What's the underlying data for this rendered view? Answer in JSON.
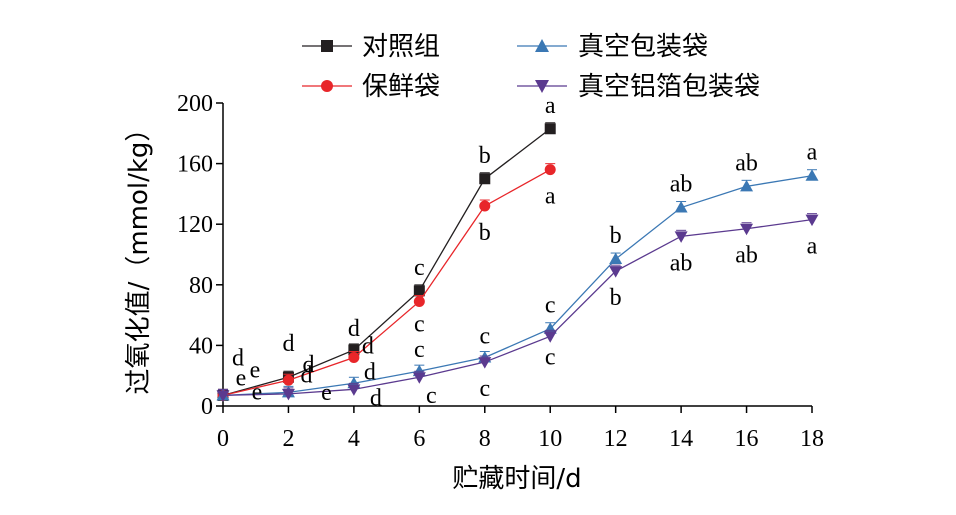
{
  "chart_data": {
    "type": "line",
    "xlabel": "贮藏时间/d",
    "ylabel": "过氧化值/（mmol/kg）",
    "xlim": [
      0,
      18
    ],
    "ylim": [
      0,
      200
    ],
    "xticks": [
      0,
      2,
      4,
      6,
      8,
      10,
      12,
      14,
      16,
      18
    ],
    "yticks": [
      0,
      40,
      80,
      120,
      160,
      200
    ],
    "legend_position": "top",
    "grid": false,
    "series": [
      {
        "name": "对照组",
        "color": "#231f20",
        "marker": "square",
        "x": [
          0,
          2,
          4,
          6,
          8,
          10
        ],
        "values": [
          7,
          19,
          37,
          76,
          150,
          183
        ],
        "labels": [
          "d",
          "d",
          "d",
          "c",
          "b",
          "a"
        ]
      },
      {
        "name": "保鲜袋",
        "color": "#e8262a",
        "marker": "circle",
        "x": [
          0,
          2,
          4,
          6,
          8,
          10
        ],
        "values": [
          7,
          17,
          32,
          69,
          132,
          156
        ],
        "labels": [
          "e",
          "d",
          "d",
          "c",
          "b",
          "a"
        ]
      },
      {
        "name": "真空包装袋",
        "color": "#3b78b4",
        "marker": "triangle-up",
        "x": [
          0,
          2,
          4,
          6,
          8,
          10,
          12,
          14,
          16,
          18
        ],
        "values": [
          7,
          9,
          15,
          23,
          32,
          51,
          97,
          131,
          145,
          152
        ],
        "labels": [
          "e",
          "d",
          "d",
          "c",
          "c",
          "c",
          "b",
          "ab",
          "ab",
          "a"
        ]
      },
      {
        "name": "真空铝箔包装袋",
        "color": "#5b3a8f",
        "marker": "triangle-down",
        "x": [
          0,
          2,
          4,
          6,
          8,
          10,
          12,
          14,
          16,
          18
        ],
        "values": [
          7,
          8,
          11,
          19,
          29,
          46,
          89,
          112,
          117,
          123
        ],
        "labels": [
          "e",
          "e",
          "d",
          "c",
          "c",
          "c",
          "b",
          "ab",
          "ab",
          "a"
        ]
      }
    ]
  }
}
